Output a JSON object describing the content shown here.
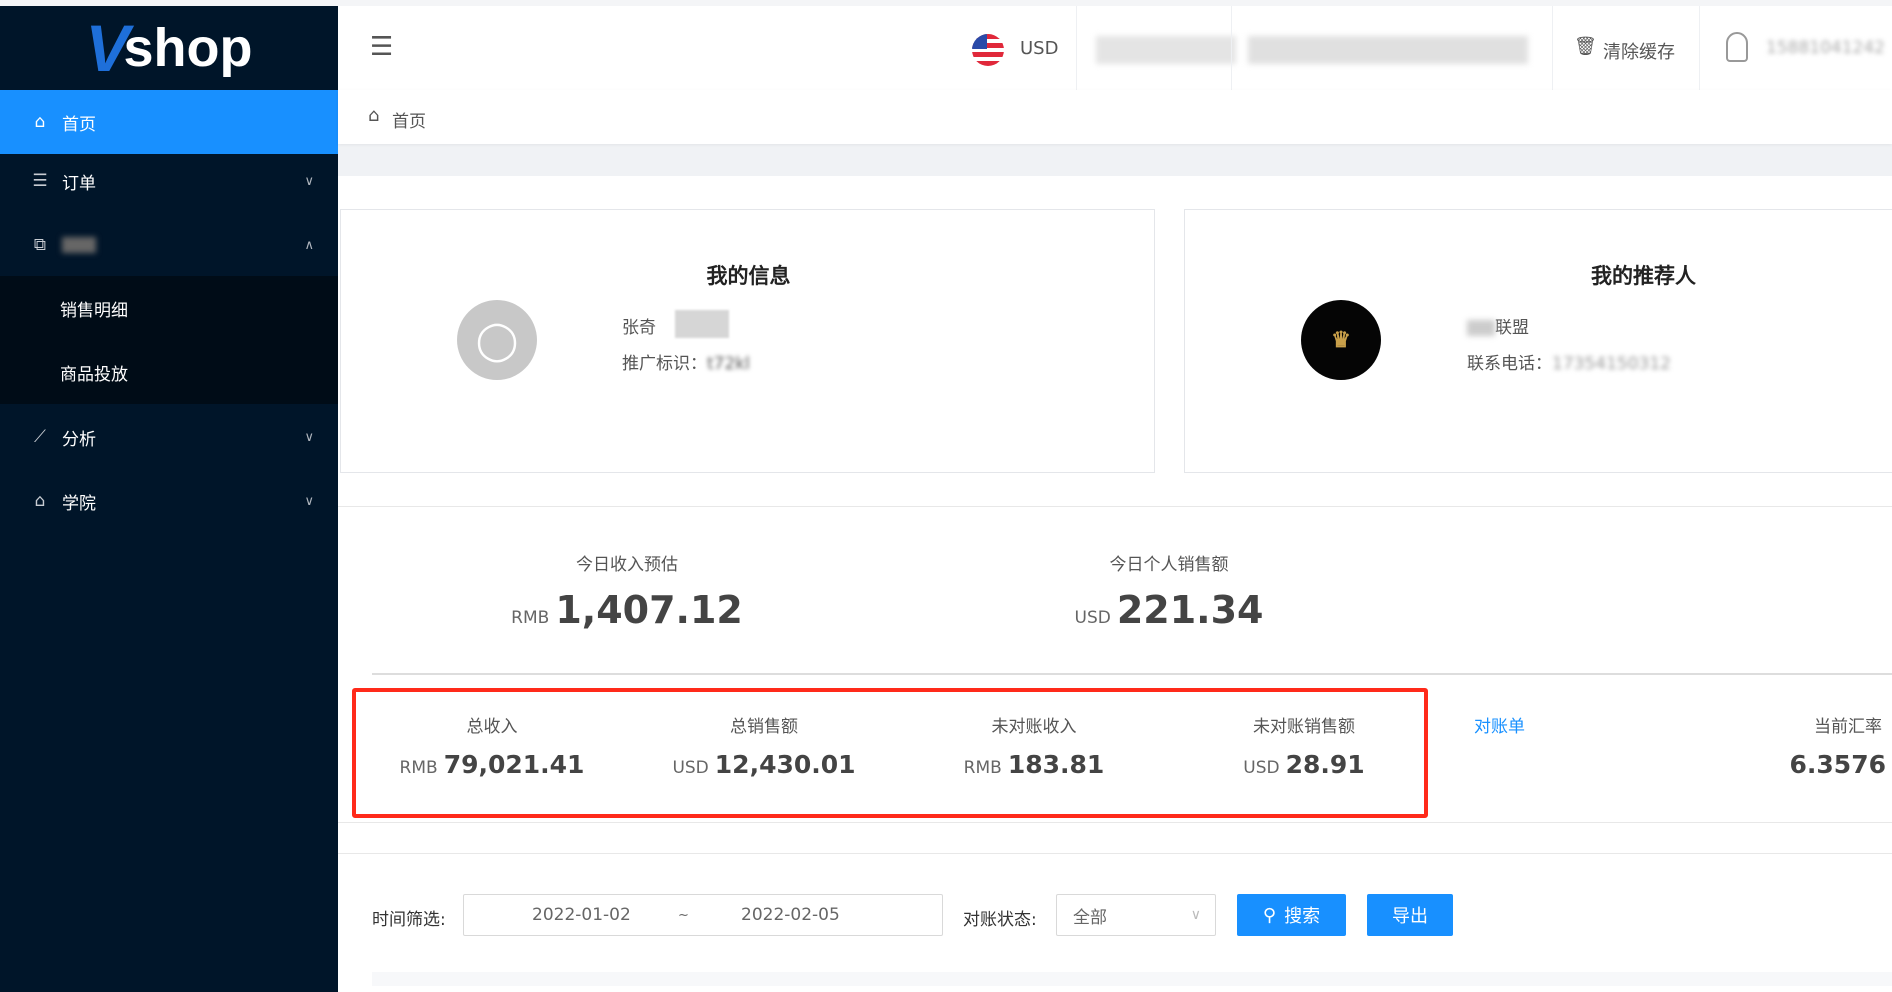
{
  "logo": {
    "text": "Vshop"
  },
  "sidebar": {
    "items": [
      {
        "label": "首页",
        "icon": "home-icon",
        "active": true
      },
      {
        "label": "订单",
        "icon": "list-icon"
      },
      {
        "label": "",
        "icon": "cubes-icon",
        "expanded": true,
        "children": [
          {
            "label": "销售明细"
          },
          {
            "label": "商品投放"
          }
        ]
      },
      {
        "label": "分析",
        "icon": "line-chart-icon"
      },
      {
        "label": "学院",
        "icon": "home-icon"
      }
    ]
  },
  "header": {
    "currency": "USD",
    "clear_cache": "清除缓存",
    "phone": "15881041242"
  },
  "breadcrumb": {
    "home": "首页"
  },
  "my_info": {
    "title": "我的信息",
    "name": "张奇",
    "badge": "",
    "promo_label": "推广标识：",
    "promo_value": "t72kl"
  },
  "referrer": {
    "title": "我的推荐人",
    "name": "联盟",
    "phone_label": "联系电话：",
    "phone_value": "17354150312"
  },
  "today": [
    {
      "label": "今日收入预估",
      "unit": "RMB",
      "value": "1,407.12"
    },
    {
      "label": "今日个人销售额",
      "unit": "USD",
      "value": "221.34"
    }
  ],
  "totals": [
    {
      "label": "总收入",
      "unit": "RMB",
      "value": "79,021.41"
    },
    {
      "label": "总销售额",
      "unit": "USD",
      "value": "12,430.01"
    },
    {
      "label": "未对账收入",
      "unit": "RMB",
      "value": "183.81"
    },
    {
      "label": "未对账销售额",
      "unit": "USD",
      "value": "28.91"
    }
  ],
  "statement_link": "对账单",
  "rate": {
    "label": "当前汇率",
    "value": "6.3576"
  },
  "filter": {
    "time_label": "时间筛选:",
    "start": "2022-01-02",
    "sep": "~",
    "end": "2022-02-05",
    "status_label": "对账状态:",
    "status_value": "全部",
    "search": "搜索",
    "export": "导出"
  },
  "colors": {
    "sidebar": "#001529",
    "accent": "#1890ff",
    "highlight": "#ff2a1a"
  }
}
